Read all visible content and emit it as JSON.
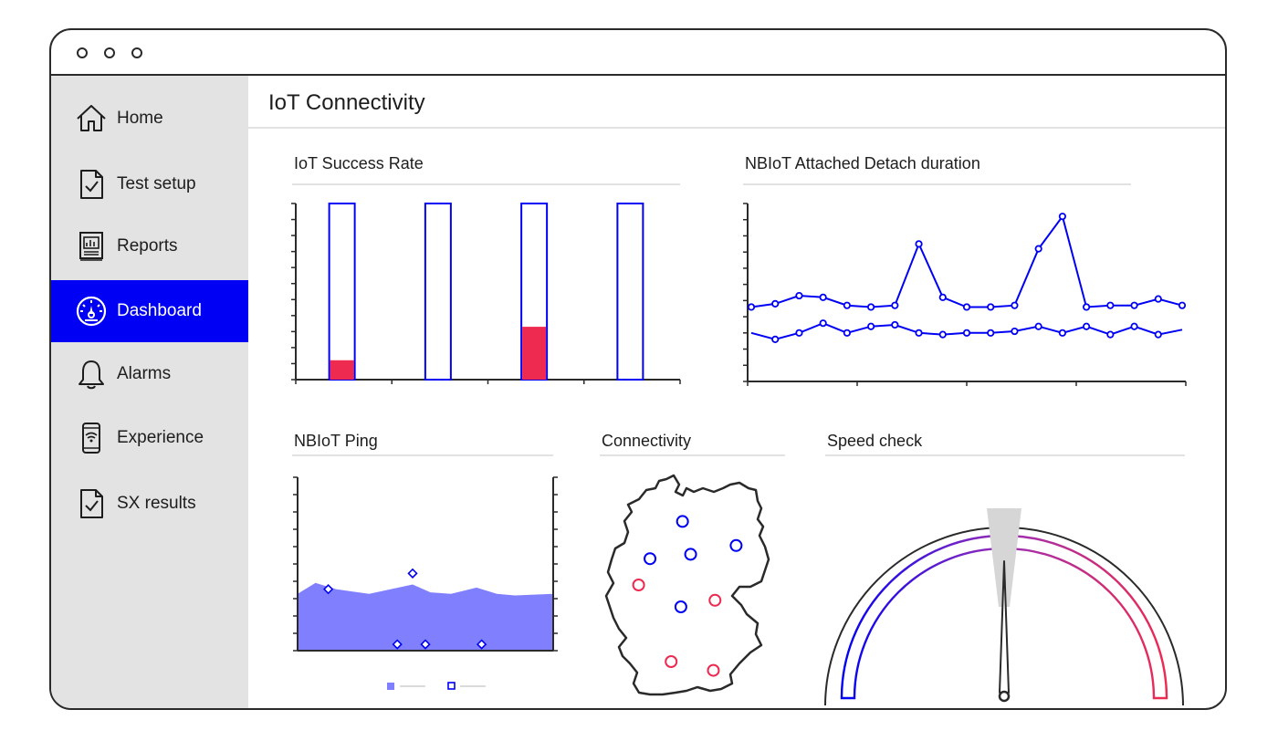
{
  "app": {
    "title": "IoT Connectivity"
  },
  "sidebar": {
    "items": [
      {
        "id": "home",
        "label": "Home",
        "icon": "home-icon",
        "active": false
      },
      {
        "id": "test-setup",
        "label": "Test setup",
        "icon": "document-check-icon",
        "active": false
      },
      {
        "id": "reports",
        "label": "Reports",
        "icon": "report-icon",
        "active": false
      },
      {
        "id": "dashboard",
        "label": "Dashboard",
        "icon": "gauge-icon",
        "active": true
      },
      {
        "id": "alarms",
        "label": "Alarms",
        "icon": "bell-icon",
        "active": false
      },
      {
        "id": "experience",
        "label": "Experience",
        "icon": "phone-wifi-icon",
        "active": false
      },
      {
        "id": "sx-results",
        "label": "SX results",
        "icon": "document-check-icon",
        "active": false
      }
    ]
  },
  "panels": {
    "success_rate": {
      "title": "IoT Success Rate"
    },
    "attach_detach": {
      "title": "NBIoT Attached Detach duration"
    },
    "ping": {
      "title": "NBIoT Ping"
    },
    "connectivity": {
      "title": "Connectivity"
    },
    "speed": {
      "title": "Speed check"
    }
  },
  "colors": {
    "accent": "#0000f5",
    "red": "#ee2a50",
    "area": "#8080ff",
    "purple": "#9b2fb5",
    "sidebar": "#e3e3e3"
  },
  "chart_data": [
    {
      "id": "success_rate",
      "type": "bar",
      "title": "IoT Success Rate",
      "categories": [
        "",
        "",
        "",
        ""
      ],
      "ylim": [
        0,
        1
      ],
      "series": [
        {
          "values": [
            0.11,
            0,
            0.3,
            0
          ]
        }
      ],
      "capacity": [
        1,
        1,
        1,
        1
      ]
    },
    {
      "id": "attach_detach",
      "type": "line",
      "title": "NBIoT Attached Detach duration",
      "ylim": [
        0,
        11
      ],
      "x": [
        0,
        1,
        2,
        3,
        4,
        5,
        6,
        7,
        8,
        9,
        10,
        11,
        12,
        13,
        14,
        15,
        16,
        17,
        18
      ],
      "series": [
        {
          "values": [
            4.6,
            4.8,
            5.3,
            5.2,
            4.7,
            4.6,
            4.7,
            8.5,
            5.2,
            4.6,
            4.6,
            4.7,
            8.2,
            10.2,
            4.6,
            4.7,
            4.7,
            5.1,
            4.7
          ]
        },
        {
          "values": [
            3.0,
            2.6,
            3.0,
            3.6,
            3.0,
            3.4,
            3.5,
            3.0,
            2.9,
            3.0,
            3.0,
            3.1,
            3.4,
            3.0,
            3.4,
            2.9,
            3.4,
            2.9,
            3.2
          ]
        }
      ]
    },
    {
      "id": "ping",
      "type": "area",
      "title": "NBIoT Ping",
      "ylim": [
        0,
        11
      ],
      "area": {
        "x": [
          0,
          0.07,
          0.15,
          0.28,
          0.45,
          0.52,
          0.6,
          0.7,
          0.78,
          0.85,
          1
        ],
        "values": [
          3.6,
          4.3,
          3.9,
          3.6,
          4.2,
          3.7,
          3.6,
          4.0,
          3.6,
          3.5,
          3.6
        ]
      },
      "points": [
        {
          "x": 0.12,
          "y": 3.9
        },
        {
          "x": 0.45,
          "y": 4.9
        },
        {
          "x": 0.39,
          "y": 0.4
        },
        {
          "x": 0.5,
          "y": 0.4
        },
        {
          "x": 0.72,
          "y": 0.4
        }
      ]
    },
    {
      "id": "connectivity",
      "type": "scatter",
      "title": "Connectivity",
      "points": [
        {
          "x": 0.47,
          "y": 0.21,
          "status": "blue"
        },
        {
          "x": 0.27,
          "y": 0.38,
          "status": "blue"
        },
        {
          "x": 0.52,
          "y": 0.36,
          "status": "blue"
        },
        {
          "x": 0.8,
          "y": 0.32,
          "status": "blue"
        },
        {
          "x": 0.2,
          "y": 0.5,
          "status": "red"
        },
        {
          "x": 0.46,
          "y": 0.6,
          "status": "blue"
        },
        {
          "x": 0.67,
          "y": 0.57,
          "status": "red"
        },
        {
          "x": 0.4,
          "y": 0.85,
          "status": "red"
        },
        {
          "x": 0.66,
          "y": 0.89,
          "status": "red"
        }
      ]
    },
    {
      "id": "speed",
      "type": "gauge",
      "title": "Speed check",
      "value": 0.5
    }
  ]
}
